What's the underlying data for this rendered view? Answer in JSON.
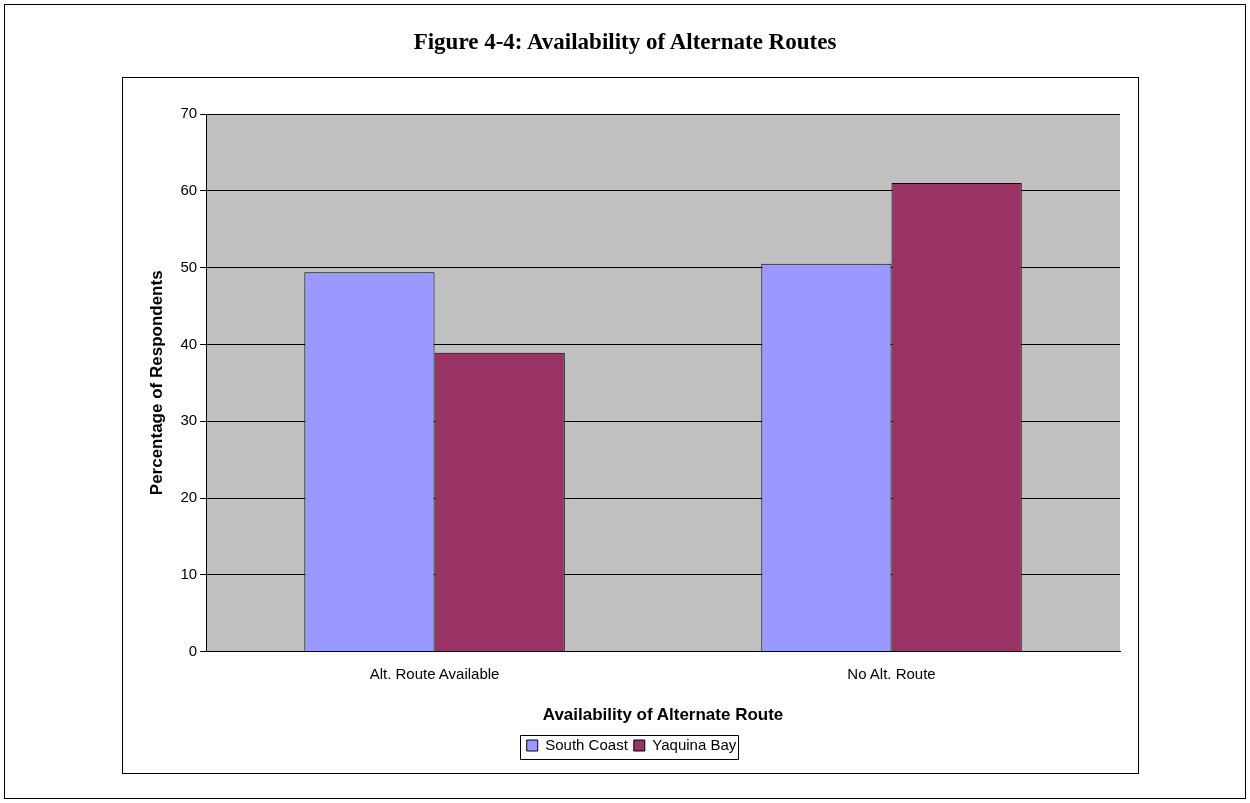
{
  "chart_data": {
    "type": "bar",
    "title": "Figure 4-4: Availability of Alternate Routes",
    "xlabel": "Availability of Alternate Route",
    "ylabel": "Percentage of Respondents",
    "categories": [
      "Alt. Route Available",
      "No Alt. Route"
    ],
    "series": [
      {
        "name": "South Coast",
        "color": "#9999ff",
        "values": [
          49.4,
          50.5
        ]
      },
      {
        "name": "Yaquina Bay",
        "color": "#993366",
        "values": [
          38.9,
          61
        ]
      }
    ],
    "ylim": [
      0,
      70
    ],
    "yticks": [
      0,
      10,
      20,
      30,
      40,
      50,
      60,
      70
    ],
    "grid": "y",
    "legend": "bottom"
  }
}
